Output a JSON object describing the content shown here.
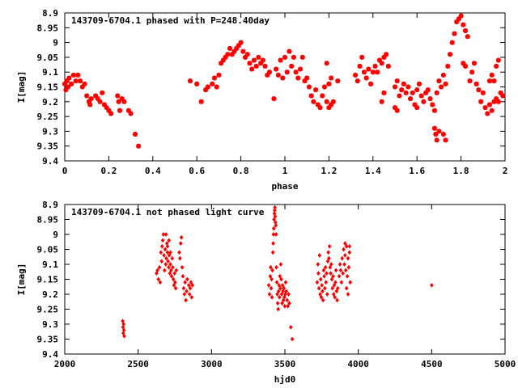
{
  "colors": {
    "points": "#ff0000",
    "axes": "#000000",
    "background": "#ffffff"
  },
  "chart_data": [
    {
      "type": "scatter",
      "title": "143709-6704.1 phased with P=248.40day",
      "xlabel": "phase",
      "ylabel": "I[mag]",
      "xlim": [
        0,
        2
      ],
      "ylim": [
        9.4,
        8.9
      ],
      "y_inverted": true,
      "grid": false,
      "legend": "none",
      "marker": "asterisk",
      "xticks": [
        "0",
        "0.2",
        "0.4",
        "0.6",
        "0.8",
        "1",
        "1.2",
        "1.4",
        "1.6",
        "1.8",
        "2"
      ],
      "yticks": [
        "8.9",
        "8.95",
        "9",
        "9.05",
        "9.1",
        "9.15",
        "9.2",
        "9.25",
        "9.3",
        "9.35",
        "9.4"
      ],
      "points": [
        [
          0.0,
          9.14
        ],
        [
          0.005,
          9.16
        ],
        [
          0.01,
          9.13
        ],
        [
          0.015,
          9.15
        ],
        [
          0.02,
          9.12
        ],
        [
          0.03,
          9.14
        ],
        [
          0.04,
          9.11
        ],
        [
          0.05,
          9.13
        ],
        [
          0.06,
          9.11
        ],
        [
          0.07,
          9.13
        ],
        [
          0.08,
          9.15
        ],
        [
          0.09,
          9.14
        ],
        [
          0.1,
          9.18
        ],
        [
          0.11,
          9.2
        ],
        [
          0.115,
          9.21
        ],
        [
          0.12,
          9.19
        ],
        [
          0.14,
          9.18
        ],
        [
          0.15,
          9.19
        ],
        [
          0.16,
          9.2
        ],
        [
          0.17,
          9.17
        ],
        [
          0.18,
          9.21
        ],
        [
          0.19,
          9.22
        ],
        [
          0.2,
          9.23
        ],
        [
          0.21,
          9.24
        ],
        [
          0.24,
          9.18
        ],
        [
          0.245,
          9.2
        ],
        [
          0.25,
          9.23
        ],
        [
          0.26,
          9.19
        ],
        [
          0.27,
          9.2
        ],
        [
          0.29,
          9.23
        ],
        [
          0.3,
          9.24
        ],
        [
          0.32,
          9.31
        ],
        [
          0.335,
          9.35
        ],
        [
          0.57,
          9.13
        ],
        [
          0.6,
          9.14
        ],
        [
          0.62,
          9.2
        ],
        [
          0.64,
          9.16
        ],
        [
          0.65,
          9.15
        ],
        [
          0.67,
          9.14
        ],
        [
          0.68,
          9.12
        ],
        [
          0.69,
          9.15
        ],
        [
          0.7,
          9.11
        ],
        [
          0.71,
          9.07
        ],
        [
          0.72,
          9.06
        ],
        [
          0.73,
          9.05
        ],
        [
          0.74,
          9.04
        ],
        [
          0.75,
          9.02
        ],
        [
          0.76,
          9.04
        ],
        [
          0.77,
          9.03
        ],
        [
          0.78,
          9.02
        ],
        [
          0.79,
          9.01
        ],
        [
          0.8,
          9.0
        ],
        [
          0.81,
          9.03
        ],
        [
          0.82,
          9.05
        ],
        [
          0.83,
          9.04
        ],
        [
          0.84,
          9.07
        ],
        [
          0.85,
          9.09
        ],
        [
          0.86,
          9.06
        ],
        [
          0.87,
          9.08
        ],
        [
          0.88,
          9.05
        ],
        [
          0.89,
          9.07
        ],
        [
          0.9,
          9.06
        ],
        [
          0.91,
          9.08
        ],
        [
          0.92,
          9.11
        ],
        [
          0.93,
          9.1
        ],
        [
          0.95,
          9.19
        ],
        [
          0.96,
          9.09
        ],
        [
          0.97,
          9.11
        ],
        [
          0.98,
          9.06
        ],
        [
          0.99,
          9.12
        ],
        [
          1.0,
          9.05
        ],
        [
          1.01,
          9.1
        ],
        [
          1.02,
          9.03
        ],
        [
          1.03,
          9.08
        ],
        [
          1.04,
          9.05
        ],
        [
          1.05,
          9.1
        ],
        [
          1.06,
          9.12
        ],
        [
          1.07,
          9.09
        ],
        [
          1.08,
          9.05
        ],
        [
          1.09,
          9.13
        ],
        [
          1.1,
          9.12
        ],
        [
          1.11,
          9.15
        ],
        [
          1.12,
          9.18
        ],
        [
          1.13,
          9.2
        ],
        [
          1.14,
          9.16
        ],
        [
          1.15,
          9.21
        ],
        [
          1.16,
          9.22
        ],
        [
          1.17,
          9.18
        ],
        [
          1.18,
          9.15
        ],
        [
          1.19,
          9.2
        ],
        [
          1.2,
          9.22
        ],
        [
          1.21,
          9.21
        ],
        [
          1.22,
          9.2
        ],
        [
          1.19,
          9.07
        ],
        [
          1.2,
          9.14
        ],
        [
          1.21,
          9.12
        ],
        [
          1.24,
          9.13
        ],
        [
          1.32,
          9.11
        ],
        [
          1.33,
          9.13
        ],
        [
          1.34,
          9.08
        ],
        [
          1.35,
          9.05
        ],
        [
          1.36,
          9.1
        ],
        [
          1.37,
          9.12
        ],
        [
          1.38,
          9.09
        ],
        [
          1.39,
          9.14
        ],
        [
          1.4,
          9.1
        ],
        [
          1.41,
          9.08
        ],
        [
          1.42,
          9.1
        ],
        [
          1.43,
          9.06
        ],
        [
          1.44,
          9.07
        ],
        [
          1.45,
          9.05
        ],
        [
          1.46,
          9.04
        ],
        [
          1.47,
          9.08
        ],
        [
          1.44,
          9.2
        ],
        [
          1.45,
          9.17
        ],
        [
          1.5,
          9.15
        ],
        [
          1.51,
          9.13
        ],
        [
          1.52,
          9.18
        ],
        [
          1.53,
          9.16
        ],
        [
          1.54,
          9.14
        ],
        [
          1.55,
          9.17
        ],
        [
          1.56,
          9.15
        ],
        [
          1.57,
          9.19
        ],
        [
          1.58,
          9.17
        ],
        [
          1.59,
          9.21
        ],
        [
          1.6,
          9.16
        ],
        [
          1.61,
          9.14
        ],
        [
          1.62,
          9.18
        ],
        [
          1.63,
          9.2
        ],
        [
          1.64,
          9.17
        ],
        [
          1.65,
          9.16
        ],
        [
          1.66,
          9.19
        ],
        [
          1.67,
          9.21
        ],
        [
          1.68,
          9.23
        ],
        [
          1.5,
          9.22
        ],
        [
          1.51,
          9.23
        ],
        [
          1.6,
          9.22
        ],
        [
          1.68,
          9.29
        ],
        [
          1.685,
          9.31
        ],
        [
          1.69,
          9.33
        ],
        [
          1.7,
          9.3
        ],
        [
          1.72,
          9.31
        ],
        [
          1.73,
          9.33
        ],
        [
          1.69,
          9.17
        ],
        [
          1.7,
          9.13
        ],
        [
          1.71,
          9.15
        ],
        [
          1.72,
          9.11
        ],
        [
          1.73,
          9.14
        ],
        [
          1.74,
          9.08
        ],
        [
          1.75,
          9.04
        ],
        [
          1.76,
          9.0
        ],
        [
          1.77,
          8.97
        ],
        [
          1.78,
          8.93
        ],
        [
          1.79,
          8.92
        ],
        [
          1.8,
          8.91
        ],
        [
          1.81,
          8.94
        ],
        [
          1.82,
          8.96
        ],
        [
          1.83,
          8.98
        ],
        [
          1.81,
          9.07
        ],
        [
          1.82,
          9.08
        ],
        [
          1.84,
          9.13
        ],
        [
          1.85,
          9.1
        ],
        [
          1.86,
          9.07
        ],
        [
          1.87,
          9.14
        ],
        [
          1.88,
          9.16
        ],
        [
          1.89,
          9.2
        ],
        [
          1.9,
          9.17
        ],
        [
          1.91,
          9.22
        ],
        [
          1.92,
          9.24
        ],
        [
          1.93,
          9.21
        ],
        [
          1.94,
          9.23
        ],
        [
          1.95,
          9.2
        ],
        [
          1.96,
          9.19
        ],
        [
          1.97,
          9.2
        ],
        [
          1.98,
          9.17
        ],
        [
          1.99,
          9.18
        ],
        [
          1.93,
          9.13
        ],
        [
          1.94,
          9.11
        ],
        [
          1.95,
          9.13
        ],
        [
          1.96,
          9.08
        ],
        [
          1.97,
          9.06
        ]
      ]
    },
    {
      "type": "scatter",
      "title": "143709-6704.1 not phased light curve",
      "xlabel": "hjd0",
      "ylabel": "I[mag]",
      "xlim": [
        2000,
        5000
      ],
      "ylim": [
        9.4,
        8.9
      ],
      "y_inverted": true,
      "grid": false,
      "legend": "none",
      "marker": "diamond",
      "xticks": [
        "2000",
        "2500",
        "3000",
        "3500",
        "4000",
        "4500",
        "5000"
      ],
      "yticks": [
        "8.9",
        "8.95",
        "9",
        "9.05",
        "9.1",
        "9.15",
        "9.2",
        "9.25",
        "9.3",
        "9.35",
        "9.4"
      ],
      "points": [
        [
          2395,
          9.29
        ],
        [
          2397,
          9.31
        ],
        [
          2399,
          9.33
        ],
        [
          2401,
          9.3
        ],
        [
          2403,
          9.32
        ],
        [
          2405,
          9.34
        ],
        [
          2625,
          9.13
        ],
        [
          2632,
          9.12
        ],
        [
          2638,
          9.15
        ],
        [
          2645,
          9.11
        ],
        [
          2650,
          9.16
        ],
        [
          2655,
          9.06
        ],
        [
          2660,
          9.09
        ],
        [
          2663,
          9.04
        ],
        [
          2668,
          9.02
        ],
        [
          2672,
          9.0
        ],
        [
          2676,
          9.07
        ],
        [
          2680,
          9.12
        ],
        [
          2684,
          9.05
        ],
        [
          2688,
          9.1
        ],
        [
          2692,
          9.08
        ],
        [
          2696,
          9.03
        ],
        [
          2700,
          9.06
        ],
        [
          2704,
          9.09
        ],
        [
          2708,
          9.11
        ],
        [
          2712,
          9.07
        ],
        [
          2716,
          9.13
        ],
        [
          2720,
          9.1
        ],
        [
          2724,
          9.12
        ],
        [
          2728,
          9.14
        ],
        [
          2732,
          9.08
        ],
        [
          2736,
          9.11
        ],
        [
          2740,
          9.15
        ],
        [
          2744,
          9.17
        ],
        [
          2748,
          9.13
        ],
        [
          2752,
          9.16
        ],
        [
          2756,
          9.18
        ],
        [
          2760,
          9.12
        ],
        [
          2690,
          9.0
        ],
        [
          2700,
          9.04
        ],
        [
          2710,
          9.02
        ],
        [
          2720,
          9.06
        ],
        [
          2780,
          9.06
        ],
        [
          2785,
          9.08
        ],
        [
          2790,
          9.03
        ],
        [
          2795,
          9.01
        ],
        [
          2800,
          9.11
        ],
        [
          2805,
          9.14
        ],
        [
          2810,
          9.18
        ],
        [
          2815,
          9.2
        ],
        [
          2820,
          9.16
        ],
        [
          2825,
          9.22
        ],
        [
          2830,
          9.19
        ],
        [
          2835,
          9.15
        ],
        [
          2845,
          9.17
        ],
        [
          2850,
          9.2
        ],
        [
          2855,
          9.18
        ],
        [
          2860,
          9.16
        ],
        [
          2865,
          9.21
        ],
        [
          2870,
          9.17
        ],
        [
          3390,
          9.17
        ],
        [
          3395,
          9.2
        ],
        [
          3400,
          9.14
        ],
        [
          3403,
          9.11
        ],
        [
          3406,
          9.18
        ],
        [
          3409,
          9.15
        ],
        [
          3412,
          9.21
        ],
        [
          3415,
          9.12
        ],
        [
          3418,
          9.06
        ],
        [
          3420,
          9.03
        ],
        [
          3422,
          9.0
        ],
        [
          3424,
          8.98
        ],
        [
          3426,
          8.95
        ],
        [
          3428,
          8.93
        ],
        [
          3430,
          8.92
        ],
        [
          3432,
          8.91
        ],
        [
          3434,
          8.94
        ],
        [
          3436,
          8.96
        ],
        [
          3438,
          8.97
        ],
        [
          3440,
          9.0
        ],
        [
          3442,
          9.11
        ],
        [
          3445,
          9.16
        ],
        [
          3448,
          9.2
        ],
        [
          3451,
          9.23
        ],
        [
          3454,
          9.25
        ],
        [
          3457,
          9.19
        ],
        [
          3460,
          9.17
        ],
        [
          3463,
          9.21
        ],
        [
          3466,
          9.14
        ],
        [
          3469,
          9.18
        ],
        [
          3472,
          9.1
        ],
        [
          3475,
          9.15
        ],
        [
          3478,
          9.2
        ],
        [
          3481,
          9.23
        ],
        [
          3484,
          9.17
        ],
        [
          3487,
          9.19
        ],
        [
          3490,
          9.22
        ],
        [
          3493,
          9.18
        ],
        [
          3496,
          9.21
        ],
        [
          3499,
          9.24
        ],
        [
          3502,
          9.2
        ],
        [
          3505,
          9.16
        ],
        [
          3510,
          9.19
        ],
        [
          3515,
          9.22
        ],
        [
          3520,
          9.24
        ],
        [
          3525,
          9.2
        ],
        [
          3530,
          9.23
        ],
        [
          3540,
          9.31
        ],
        [
          3550,
          9.35
        ],
        [
          3720,
          9.16
        ],
        [
          3725,
          9.1
        ],
        [
          3728,
          9.13
        ],
        [
          3732,
          9.18
        ],
        [
          3736,
          9.07
        ],
        [
          3740,
          9.2
        ],
        [
          3744,
          9.15
        ],
        [
          3748,
          9.21
        ],
        [
          3752,
          9.17
        ],
        [
          3756,
          9.19
        ],
        [
          3760,
          9.22
        ],
        [
          3764,
          9.12
        ],
        [
          3768,
          9.14
        ],
        [
          3772,
          9.18
        ],
        [
          3776,
          9.11
        ],
        [
          3780,
          9.16
        ],
        [
          3784,
          9.13
        ],
        [
          3788,
          9.2
        ],
        [
          3792,
          9.09
        ],
        [
          3796,
          9.06
        ],
        [
          3800,
          9.08
        ],
        [
          3804,
          9.04
        ],
        [
          3808,
          9.11
        ],
        [
          3812,
          9.13
        ],
        [
          3816,
          9.1
        ],
        [
          3820,
          9.15
        ],
        [
          3824,
          9.18
        ],
        [
          3828,
          9.14
        ],
        [
          3832,
          9.2
        ],
        [
          3836,
          9.17
        ],
        [
          3840,
          9.21
        ],
        [
          3844,
          9.16
        ],
        [
          3848,
          9.12
        ],
        [
          3852,
          9.19
        ],
        [
          3856,
          9.22
        ],
        [
          3860,
          9.18
        ],
        [
          3870,
          9.14
        ],
        [
          3875,
          9.1
        ],
        [
          3880,
          9.12
        ],
        [
          3885,
          9.16
        ],
        [
          3890,
          9.08
        ],
        [
          3895,
          9.13
        ],
        [
          3900,
          9.05
        ],
        [
          3905,
          9.1
        ],
        [
          3910,
          9.07
        ],
        [
          3915,
          9.12
        ],
        [
          3920,
          9.04
        ],
        [
          3925,
          9.14
        ],
        [
          3930,
          9.08
        ],
        [
          3935,
          9.11
        ],
        [
          3940,
          9.06
        ],
        [
          3945,
          9.16
        ],
        [
          3910,
          9.03
        ],
        [
          3920,
          9.18
        ],
        [
          3930,
          9.2
        ],
        [
          3940,
          9.04
        ],
        [
          4500,
          9.17
        ]
      ]
    }
  ]
}
